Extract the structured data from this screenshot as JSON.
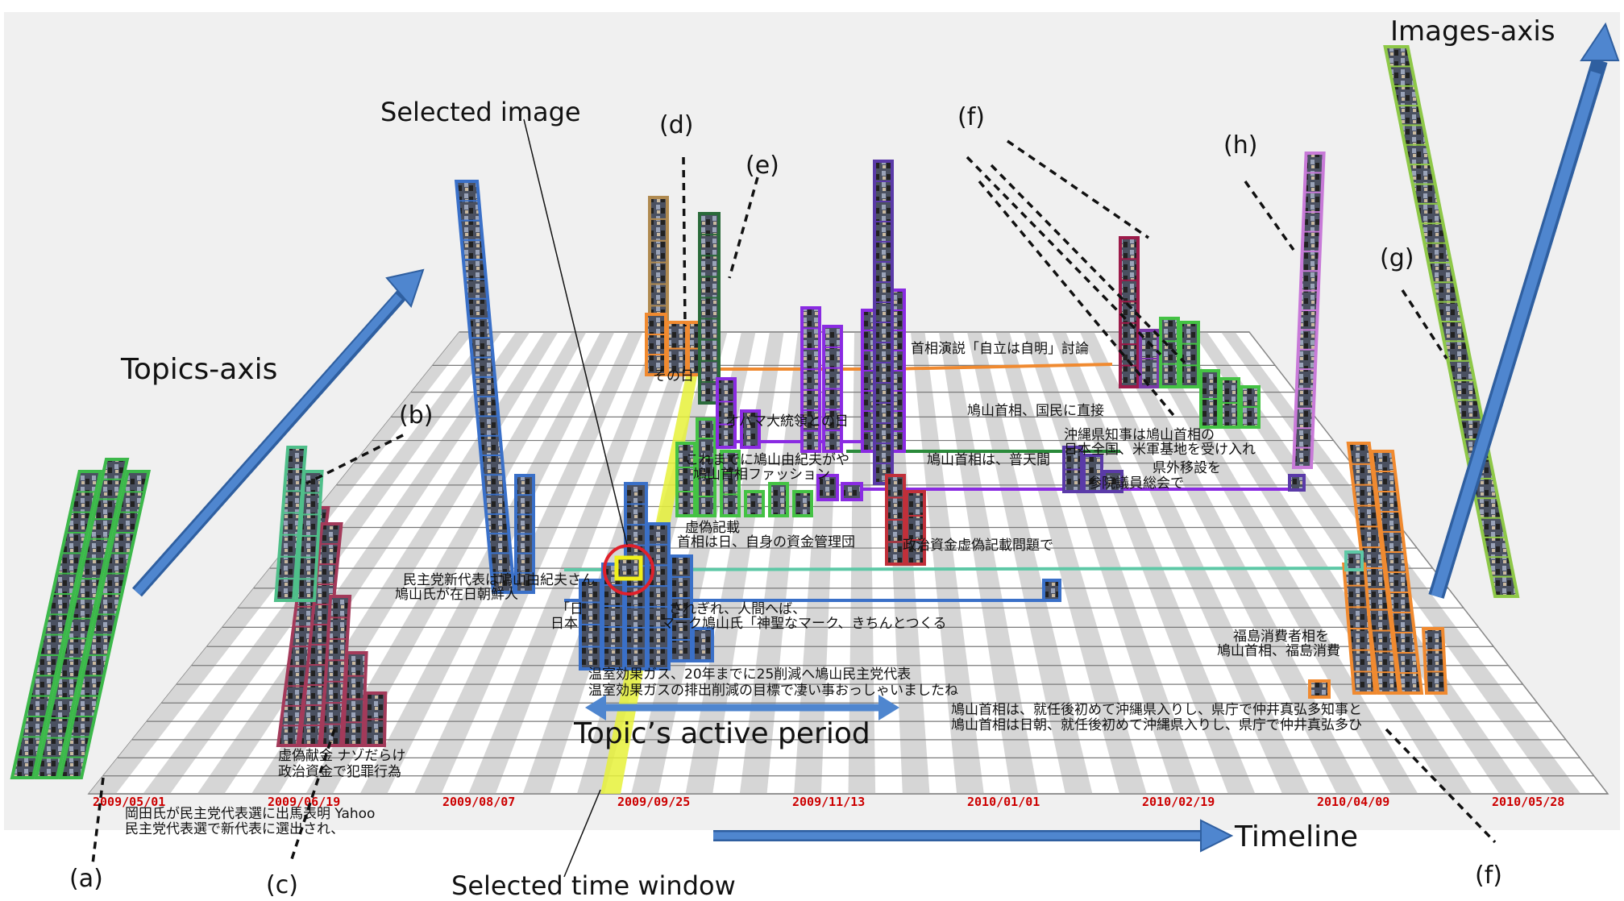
{
  "annotations": {
    "images_axis": "Images-axis",
    "topics_axis": "Topics-axis",
    "timeline": "Timeline",
    "selected_image": "Selected image",
    "selected_time_window": "Selected time window",
    "active_period": "Topic’s active period",
    "a": "(a)",
    "b": "(b)",
    "c": "(c)",
    "d": "(d)",
    "e": "(e)",
    "f_top": "(f)",
    "f_bottom": "(f)",
    "g": "(g)",
    "h": "(h)"
  },
  "timeline_ticks": [
    "2009/05/01",
    "2009/06/19",
    "2009/08/07",
    "2009/09/25",
    "2009/11/13",
    "2010/01/01",
    "2010/02/19",
    "2010/04/09",
    "2010/05/28"
  ],
  "topic_labels": {
    "a1": "岡田氏が民主党代表選に出馬表明 Yahoo",
    "a2": "民主党代表選で新代表に選出され、",
    "c1": "虚偽献金 ナゾだらけ",
    "c2": "政治資金で犯罪行為",
    "b1": "民主党新代表は鳩山由紀夫さん",
    "b2": "鳩山氏が在日朝鮮人",
    "d1": "温室効果ガス、20年までに25削減へ鳩山民主党代表",
    "d2": "温室効果ガスの排出削減の目標で凄い事おっしゃいましたね",
    "e1": "「日",
    "e2": "日本",
    "e3": "されぎれ、人間へば、",
    "e4": "マーク鳩山氏「神聖なマーク、きちんとつくる",
    "f1": "鳩山首相は、就任後初めて沖縄県入りし、県庁で仲井真弘多知事と",
    "f2": "鳩山首相は日朝、就任後初めて沖縄県入りし、県庁で仲井真弘多ひ",
    "g1": "福島消費者相を",
    "g2": "鳩山首相、福島消費",
    "m1": "虚偽記載",
    "m2": "首相は日、自身の資金管理団",
    "m3": "政治資金虚偽記載問題で",
    "m4": "これまでに鳩山由紀夫がや",
    "m5": "鳩山首相ファッション",
    "m6": "オバマ大統領との日",
    "m7": "鳩山首相は、普天間",
    "h1": "沖縄県知事は鳩山首相の",
    "h2": "日本全国、米軍基地を受け入れ",
    "h3": "参院議員総会で",
    "h4": "県外移設を",
    "o1": "その日",
    "o2": "首相演説「自立は自明」討論",
    "o3": "鳩山首相、国民に直接"
  }
}
